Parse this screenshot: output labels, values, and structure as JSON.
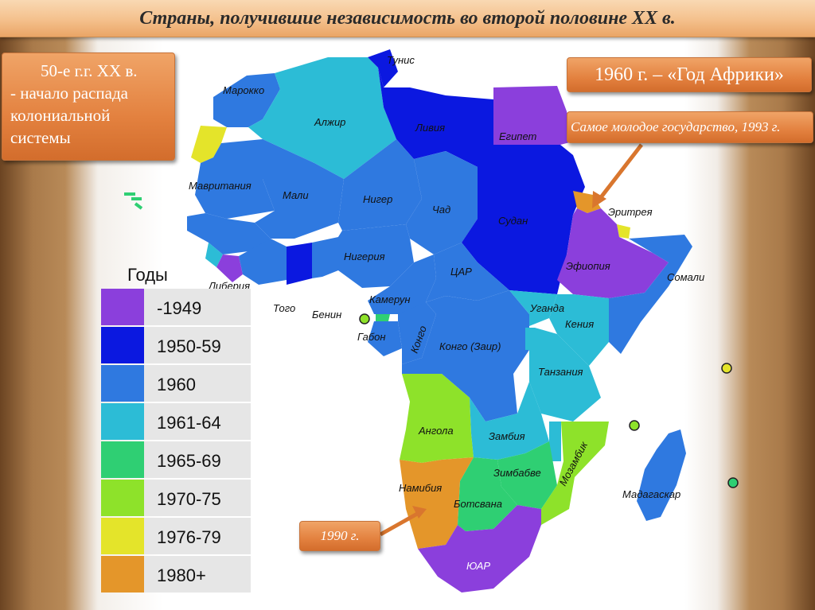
{
  "title": "Страны, получившие независимость во второй половине XX в.",
  "callouts": {
    "fifties": [
      "50-е г.г. XX в.",
      "- начало распада",
      "колониальной",
      "системы"
    ],
    "africa_year": "1960 г. – «Год Африки»",
    "youngest": "Самое молодое государство, 1993 г.",
    "namibia_year": "1990 г."
  },
  "legend": {
    "title": "Годы",
    "items": [
      {
        "label": "-1949",
        "color": "#8b3fdc"
      },
      {
        "label": "1950-59",
        "color": "#0b18e0"
      },
      {
        "label": "1960",
        "color": "#2f79e0"
      },
      {
        "label": "1961-64",
        "color": "#2cbcd6"
      },
      {
        "label": "1965-69",
        "color": "#2fcf73"
      },
      {
        "label": "1970-75",
        "color": "#8ee22a"
      },
      {
        "label": "1976-79",
        "color": "#e4e42a"
      },
      {
        "label": "1980+",
        "color": "#e4962a"
      }
    ]
  },
  "countries": {
    "tunisia": "Тунис",
    "morocco": "Марокко",
    "algeria": "Алжир",
    "libya": "Ливия",
    "egypt": "Египет",
    "mauritania": "Мавритания",
    "mali": "Мали",
    "niger": "Нигер",
    "chad": "Чад",
    "sudan": "Судан",
    "eritrea": "Эритрея",
    "ethiopia": "Эфиопия",
    "somalia": "Сомали",
    "nigeria": "Нигерия",
    "liberia": "Либерия",
    "togo": "Того",
    "benin": "Бенин",
    "cameroon": "Камерун",
    "car": "ЦАР",
    "gabon": "Габон",
    "congo": "Конго",
    "zaire": "Конго (Заир)",
    "uganda": "Уганда",
    "kenya": "Кения",
    "tanzania": "Танзания",
    "angola": "Ангола",
    "zambia": "Замбия",
    "zimbabwe": "Зимбабве",
    "mozambique": "Мозамбик",
    "namibia": "Намибия",
    "botswana": "Ботсвана",
    "madagascar": "Мадагаскар",
    "south_africa": "ЮАР"
  }
}
